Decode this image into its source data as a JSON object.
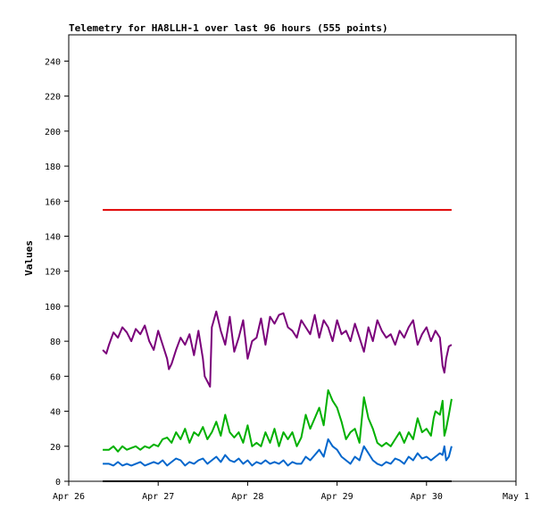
{
  "chart_data": {
    "type": "line",
    "title": "Telemetry for HA8LLH-1 over last 96 hours (555 points)",
    "xlabel": "",
    "ylabel": "Values",
    "ylim": [
      0,
      255
    ],
    "yticks": [
      0,
      20,
      40,
      60,
      80,
      100,
      120,
      140,
      160,
      180,
      200,
      220,
      240
    ],
    "xlim": [
      0,
      5
    ],
    "xticks": [
      {
        "x": 0,
        "label": "Apr 26"
      },
      {
        "x": 1,
        "label": "Apr 27"
      },
      {
        "x": 2,
        "label": "Apr 28"
      },
      {
        "x": 3,
        "label": "Apr 29"
      },
      {
        "x": 4,
        "label": "Apr 30"
      },
      {
        "x": 5,
        "label": "May 1"
      }
    ],
    "grid": false,
    "legend": "none",
    "colors": {
      "red": "#e00000",
      "purple": "#7a007a",
      "green": "#00b000",
      "blue": "#0066cc",
      "black": "#000000"
    },
    "series": [
      {
        "color": "red",
        "x": [
          0.38,
          0.6,
          1.0,
          1.5,
          2.0,
          2.5,
          3.0,
          3.5,
          4.0,
          4.28
        ],
        "values": [
          155,
          155,
          155,
          155,
          155,
          155,
          155,
          155,
          155,
          155
        ]
      },
      {
        "color": "purple",
        "x": [
          0.38,
          0.42,
          0.45,
          0.5,
          0.55,
          0.6,
          0.65,
          0.7,
          0.75,
          0.8,
          0.85,
          0.9,
          0.95,
          1.0,
          1.05,
          1.1,
          1.12,
          1.15,
          1.2,
          1.25,
          1.3,
          1.35,
          1.4,
          1.45,
          1.5,
          1.52,
          1.55,
          1.58,
          1.6,
          1.65,
          1.7,
          1.75,
          1.8,
          1.85,
          1.9,
          1.95,
          2.0,
          2.05,
          2.1,
          2.15,
          2.2,
          2.25,
          2.3,
          2.35,
          2.4,
          2.45,
          2.5,
          2.55,
          2.6,
          2.65,
          2.7,
          2.75,
          2.8,
          2.85,
          2.9,
          2.95,
          3.0,
          3.05,
          3.1,
          3.15,
          3.2,
          3.25,
          3.3,
          3.35,
          3.4,
          3.45,
          3.5,
          3.55,
          3.6,
          3.65,
          3.7,
          3.75,
          3.8,
          3.85,
          3.9,
          3.95,
          4.0,
          4.05,
          4.1,
          4.15,
          4.18,
          4.2,
          4.22,
          4.25,
          4.28
        ],
        "values": [
          75,
          73,
          78,
          85,
          82,
          88,
          85,
          80,
          87,
          84,
          89,
          80,
          75,
          86,
          78,
          70,
          64,
          67,
          75,
          82,
          78,
          84,
          72,
          86,
          70,
          60,
          57,
          54,
          88,
          97,
          86,
          78,
          94,
          74,
          82,
          92,
          70,
          80,
          82,
          93,
          78,
          94,
          90,
          95,
          96,
          88,
          86,
          82,
          92,
          88,
          84,
          95,
          82,
          92,
          88,
          80,
          92,
          84,
          86,
          80,
          90,
          82,
          74,
          88,
          80,
          92,
          86,
          82,
          84,
          78,
          86,
          82,
          88,
          92,
          78,
          84,
          88,
          80,
          86,
          82,
          66,
          62,
          70,
          77,
          78
        ]
      },
      {
        "color": "green",
        "x": [
          0.38,
          0.45,
          0.5,
          0.55,
          0.6,
          0.65,
          0.7,
          0.75,
          0.8,
          0.85,
          0.9,
          0.95,
          1.0,
          1.05,
          1.1,
          1.15,
          1.2,
          1.25,
          1.3,
          1.35,
          1.4,
          1.45,
          1.5,
          1.55,
          1.6,
          1.65,
          1.7,
          1.75,
          1.8,
          1.85,
          1.9,
          1.95,
          2.0,
          2.05,
          2.1,
          2.15,
          2.2,
          2.25,
          2.3,
          2.35,
          2.4,
          2.45,
          2.5,
          2.55,
          2.6,
          2.65,
          2.7,
          2.75,
          2.8,
          2.85,
          2.9,
          2.95,
          3.0,
          3.05,
          3.1,
          3.15,
          3.2,
          3.25,
          3.3,
          3.35,
          3.4,
          3.45,
          3.5,
          3.55,
          3.6,
          3.65,
          3.7,
          3.75,
          3.8,
          3.85,
          3.9,
          3.95,
          4.0,
          4.05,
          4.08,
          4.1,
          4.15,
          4.18,
          4.2,
          4.22,
          4.25,
          4.28
        ],
        "values": [
          18,
          18,
          20,
          17,
          20,
          18,
          19,
          20,
          18,
          20,
          19,
          21,
          20,
          24,
          25,
          22,
          28,
          24,
          30,
          22,
          28,
          26,
          31,
          24,
          28,
          34,
          26,
          38,
          28,
          25,
          28,
          22,
          32,
          20,
          22,
          20,
          28,
          22,
          30,
          20,
          28,
          24,
          28,
          20,
          25,
          38,
          30,
          36,
          42,
          32,
          52,
          46,
          42,
          34,
          24,
          28,
          30,
          22,
          48,
          36,
          30,
          22,
          20,
          22,
          20,
          24,
          28,
          22,
          28,
          24,
          36,
          28,
          30,
          26,
          36,
          40,
          38,
          46,
          26,
          30,
          38,
          47
        ]
      },
      {
        "color": "blue",
        "x": [
          0.38,
          0.45,
          0.5,
          0.55,
          0.6,
          0.65,
          0.7,
          0.75,
          0.8,
          0.85,
          0.9,
          0.95,
          1.0,
          1.05,
          1.1,
          1.15,
          1.2,
          1.25,
          1.3,
          1.35,
          1.4,
          1.45,
          1.5,
          1.55,
          1.6,
          1.65,
          1.7,
          1.75,
          1.8,
          1.85,
          1.9,
          1.95,
          2.0,
          2.05,
          2.1,
          2.15,
          2.2,
          2.25,
          2.3,
          2.35,
          2.4,
          2.45,
          2.5,
          2.55,
          2.6,
          2.65,
          2.7,
          2.75,
          2.8,
          2.85,
          2.9,
          2.95,
          3.0,
          3.05,
          3.1,
          3.15,
          3.2,
          3.25,
          3.3,
          3.35,
          3.4,
          3.45,
          3.5,
          3.55,
          3.6,
          3.65,
          3.7,
          3.75,
          3.8,
          3.85,
          3.9,
          3.95,
          4.0,
          4.05,
          4.1,
          4.15,
          4.18,
          4.2,
          4.22,
          4.25,
          4.28
        ],
        "values": [
          10,
          10,
          9,
          11,
          9,
          10,
          9,
          10,
          11,
          9,
          10,
          11,
          10,
          12,
          9,
          11,
          13,
          12,
          9,
          11,
          10,
          12,
          13,
          10,
          12,
          14,
          11,
          15,
          12,
          11,
          13,
          10,
          12,
          9,
          11,
          10,
          12,
          10,
          11,
          10,
          12,
          9,
          11,
          10,
          10,
          14,
          12,
          15,
          18,
          14,
          24,
          20,
          18,
          14,
          12,
          10,
          14,
          12,
          20,
          16,
          12,
          10,
          9,
          11,
          10,
          13,
          12,
          10,
          14,
          12,
          16,
          13,
          14,
          12,
          14,
          16,
          15,
          20,
          12,
          14,
          20
        ]
      },
      {
        "color": "black",
        "x": [
          0.38,
          4.28
        ],
        "values": [
          0,
          0
        ]
      }
    ]
  }
}
